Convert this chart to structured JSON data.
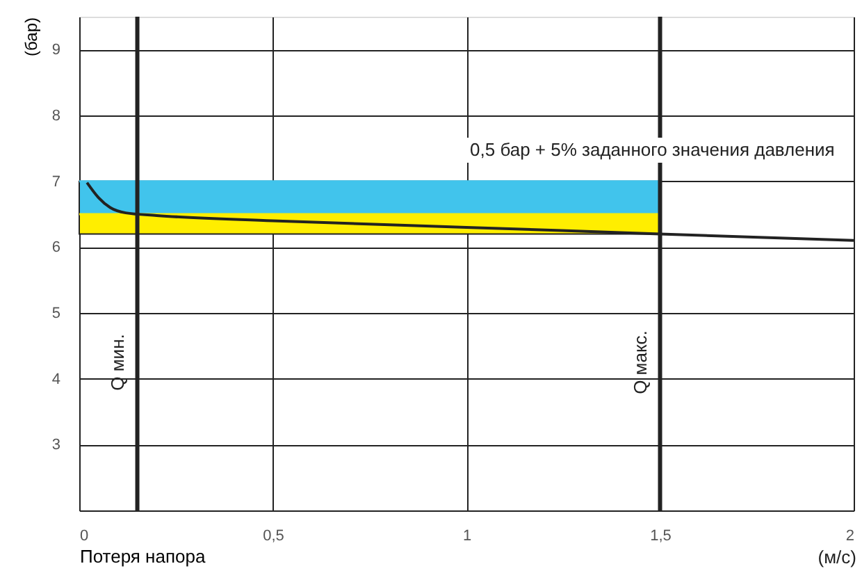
{
  "chart_data": {
    "type": "line",
    "xlabel": "Потеря напора",
    "ylabel": "(бар)",
    "annotations": [
      "0,5 бар + 5% заданного значения давления",
      "(м/с)"
    ],
    "xlim": [
      0,
      2
    ],
    "ylim": [
      2,
      9.5
    ],
    "xticks": [
      0,
      {
        "value": 0.5,
        "label": "0,5"
      },
      1,
      {
        "value": 1.5,
        "label": "1,5"
      },
      2
    ],
    "yticks": [
      3,
      4,
      5,
      6,
      7,
      8,
      9
    ],
    "grid": true,
    "series": [
      {
        "color": "#41c4ec",
        "x": [
          0,
          1.5
        ],
        "values": [
          7,
          7
        ],
        "lower": [
          6.5,
          6.5
        ],
        "upper": [
          7,
          7
        ]
      },
      {
        "color": "#ffee00",
        "x": [
          0,
          1.5
        ],
        "values": [
          6.5,
          6.5
        ],
        "lower": [
          6.2,
          6.2
        ],
        "upper": [
          6.5,
          6.5
        ]
      },
      {
        "color": "#222222",
        "x": [
          0.02,
          0.05,
          0.08,
          0.12,
          0.2,
          0.5,
          1,
          1.5,
          2
        ],
        "values": [
          6.98,
          6.75,
          6.6,
          6.52,
          6.48,
          6.4,
          6.3,
          6.2,
          6.1
        ]
      }
    ],
    "ref_lines": [
      {
        "axis": "x",
        "value": 0.15,
        "label": "Q мин."
      },
      {
        "axis": "x",
        "value": 1.5,
        "label": "Q макс."
      }
    ]
  }
}
